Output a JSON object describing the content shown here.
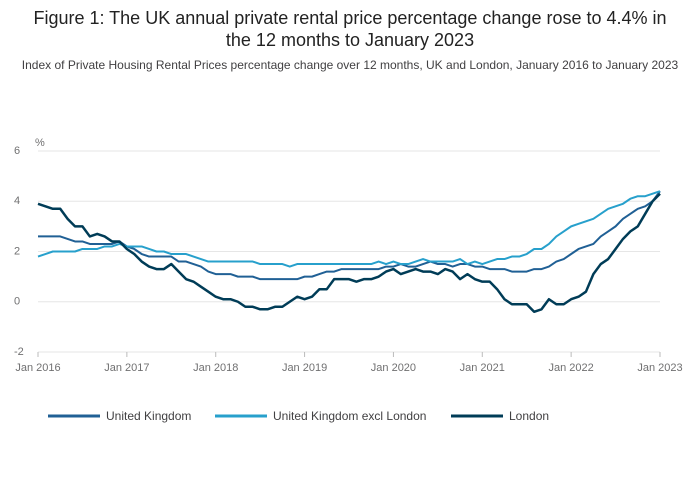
{
  "chart_data": {
    "type": "line",
    "title": "Figure 1: The UK annual private rental price percentage change rose to 4.4% in the 12 months to January 2023",
    "subtitle": "Index of Private Housing Rental Prices percentage change over 12 months, UK and London, January 2016 to January 2023",
    "y_label": "%",
    "categories": [
      "Jan 2016",
      null,
      null,
      null,
      null,
      null,
      null,
      null,
      null,
      null,
      null,
      null,
      "Jan 2017",
      null,
      null,
      null,
      null,
      null,
      null,
      null,
      null,
      null,
      null,
      null,
      "Jan 2018",
      null,
      null,
      null,
      null,
      null,
      null,
      null,
      null,
      null,
      null,
      null,
      "Jan 2019",
      null,
      null,
      null,
      null,
      null,
      null,
      null,
      null,
      null,
      null,
      null,
      "Jan 2020",
      null,
      null,
      null,
      null,
      null,
      null,
      null,
      null,
      null,
      null,
      null,
      "Jan 2021",
      null,
      null,
      null,
      null,
      null,
      null,
      null,
      null,
      null,
      null,
      null,
      "Jan 2022",
      null,
      null,
      null,
      null,
      null,
      null,
      null,
      null,
      null,
      null,
      null,
      "Jan 2023"
    ],
    "series": [
      {
        "name": "United Kingdom",
        "color": "#206095",
        "values": [
          2.6,
          2.6,
          2.6,
          2.6,
          2.5,
          2.4,
          2.4,
          2.3,
          2.3,
          2.3,
          2.3,
          2.4,
          2.2,
          2.1,
          1.9,
          1.8,
          1.8,
          1.8,
          1.8,
          1.6,
          1.6,
          1.5,
          1.4,
          1.2,
          1.1,
          1.1,
          1.1,
          1.0,
          1.0,
          1.0,
          0.9,
          0.9,
          0.9,
          0.9,
          0.9,
          0.9,
          1.0,
          1.0,
          1.1,
          1.2,
          1.2,
          1.3,
          1.3,
          1.3,
          1.3,
          1.3,
          1.3,
          1.4,
          1.4,
          1.5,
          1.4,
          1.4,
          1.5,
          1.6,
          1.5,
          1.5,
          1.4,
          1.5,
          1.5,
          1.4,
          1.4,
          1.3,
          1.3,
          1.3,
          1.2,
          1.2,
          1.2,
          1.3,
          1.3,
          1.4,
          1.6,
          1.7,
          1.9,
          2.1,
          2.2,
          2.3,
          2.6,
          2.8,
          3.0,
          3.3,
          3.5,
          3.7,
          3.8,
          4.0,
          4.4
        ]
      },
      {
        "name": "United Kingdom excl London",
        "color": "#27a0cc",
        "values": [
          1.8,
          1.9,
          2.0,
          2.0,
          2.0,
          2.0,
          2.1,
          2.1,
          2.1,
          2.2,
          2.2,
          2.3,
          2.2,
          2.2,
          2.2,
          2.1,
          2.0,
          2.0,
          1.9,
          1.9,
          1.9,
          1.8,
          1.7,
          1.6,
          1.6,
          1.6,
          1.6,
          1.6,
          1.6,
          1.6,
          1.5,
          1.5,
          1.5,
          1.5,
          1.4,
          1.5,
          1.5,
          1.5,
          1.5,
          1.5,
          1.5,
          1.5,
          1.5,
          1.5,
          1.5,
          1.5,
          1.6,
          1.5,
          1.6,
          1.5,
          1.5,
          1.6,
          1.7,
          1.6,
          1.6,
          1.6,
          1.6,
          1.7,
          1.5,
          1.6,
          1.5,
          1.6,
          1.7,
          1.7,
          1.8,
          1.8,
          1.9,
          2.1,
          2.1,
          2.3,
          2.6,
          2.8,
          3.0,
          3.1,
          3.2,
          3.3,
          3.5,
          3.7,
          3.8,
          3.9,
          4.1,
          4.2,
          4.2,
          4.3,
          4.4
        ]
      },
      {
        "name": "London",
        "color": "#003c57",
        "values": [
          3.9,
          3.8,
          3.7,
          3.7,
          3.3,
          3.0,
          3.0,
          2.6,
          2.7,
          2.6,
          2.4,
          2.4,
          2.1,
          1.9,
          1.6,
          1.4,
          1.3,
          1.3,
          1.5,
          1.2,
          0.9,
          0.8,
          0.6,
          0.4,
          0.2,
          0.1,
          0.1,
          0.0,
          -0.2,
          -0.2,
          -0.3,
          -0.3,
          -0.2,
          -0.2,
          0.0,
          0.2,
          0.1,
          0.2,
          0.5,
          0.5,
          0.9,
          0.9,
          0.9,
          0.8,
          0.9,
          0.9,
          1.0,
          1.2,
          1.3,
          1.1,
          1.2,
          1.3,
          1.2,
          1.2,
          1.1,
          1.3,
          1.2,
          0.9,
          1.1,
          0.9,
          0.8,
          0.8,
          0.5,
          0.1,
          -0.1,
          -0.1,
          -0.1,
          -0.4,
          -0.3,
          0.1,
          -0.1,
          -0.1,
          0.1,
          0.2,
          0.4,
          1.1,
          1.5,
          1.7,
          2.1,
          2.5,
          2.8,
          3.0,
          3.5,
          4.0,
          4.3
        ]
      }
    ],
    "ylim": [
      -2,
      6
    ],
    "yticks": [
      -2,
      0,
      2,
      4,
      6
    ],
    "grid": true,
    "legend": "bottom"
  }
}
